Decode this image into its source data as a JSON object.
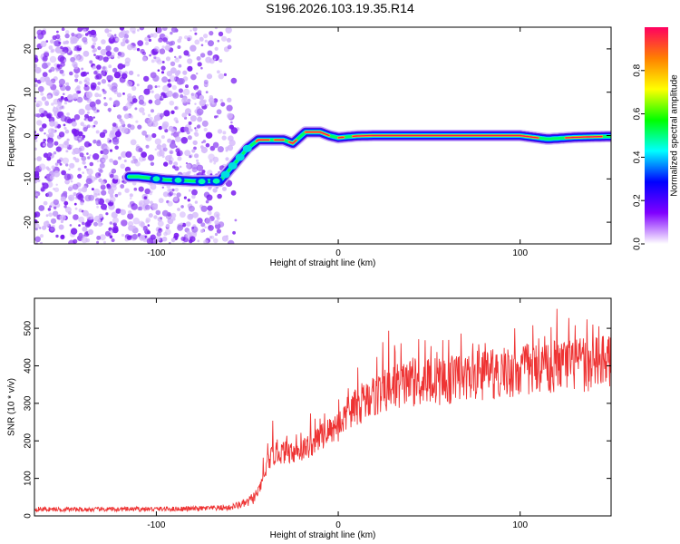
{
  "title": "S196.2026.103.19.35.R14",
  "chart_data": [
    {
      "type": "heatmap",
      "xlabel": "Height of straight line (km)",
      "ylabel": "Frequency (Hz)",
      "xlim": [
        -167,
        150
      ],
      "ylim": [
        -25,
        25
      ],
      "xticks": [
        -100,
        0,
        100
      ],
      "yticks": [
        -20,
        -10,
        0,
        10,
        20
      ],
      "xtick_labels": [
        "-100",
        "0",
        "100"
      ],
      "ytick_labels": [
        "-20",
        "-10",
        "0",
        "10",
        "20"
      ],
      "ridge": {
        "x": [
          -110,
          -95,
          -80,
          -65,
          -58,
          -50,
          -44,
          -40,
          -30,
          -25,
          -18,
          -10,
          -5,
          0,
          10,
          20,
          40,
          60,
          80,
          100,
          115,
          130,
          148
        ],
        "y": [
          -9.5,
          -10.2,
          -10.5,
          -10.5,
          -7,
          -3,
          -1,
          -1,
          -1,
          -1.8,
          0.8,
          0.8,
          0,
          -0.5,
          -0.1,
          0,
          0,
          0,
          0,
          0,
          -0.8,
          -0.4,
          -0.2
        ]
      },
      "noise_region_x": [
        -167,
        -55
      ],
      "colorbar": {
        "label": "Normalized spectral amplitude",
        "range": [
          0,
          1
        ],
        "ticks": [
          0.0,
          0.2,
          0.4,
          0.6,
          0.8
        ],
        "tick_labels": [
          "0.0",
          "0.2",
          "0.4",
          "0.6",
          "0.8"
        ],
        "colors": [
          "#ffffff",
          "#8000ff",
          "#0000ff",
          "#00ffff",
          "#00ff00",
          "#ffff00",
          "#ff8000",
          "#ff0060"
        ]
      }
    },
    {
      "type": "line",
      "xlabel": "Height of straight line (km)",
      "ylabel": "SNR (10 * v/v)",
      "xlim": [
        -167,
        150
      ],
      "ylim": [
        0,
        580
      ],
      "xticks": [
        -100,
        0,
        100
      ],
      "yticks": [
        0,
        100,
        200,
        300,
        400,
        500
      ],
      "xtick_labels": [
        "-100",
        "0",
        "100"
      ],
      "ytick_labels": [
        "0",
        "100",
        "200",
        "300",
        "400",
        "500"
      ],
      "series": [
        {
          "name": "SNR",
          "color": "#ee3333",
          "x": [
            -167,
            -140,
            -110,
            -80,
            -60,
            -50,
            -45,
            -42,
            -38,
            -35,
            -30,
            -25,
            -20,
            -15,
            -10,
            -5,
            0,
            5,
            10,
            15,
            20,
            25,
            30,
            40,
            50,
            60,
            70,
            80,
            90,
            100,
            110,
            120,
            130,
            140,
            150
          ],
          "y": [
            18,
            17,
            18,
            19,
            22,
            35,
            55,
            85,
            150,
            165,
            170,
            170,
            175,
            190,
            210,
            225,
            240,
            270,
            290,
            310,
            320,
            330,
            345,
            355,
            360,
            360,
            370,
            375,
            380,
            385,
            395,
            400,
            400,
            405,
            410
          ],
          "spike_amplitude": 110
        }
      ]
    }
  ]
}
